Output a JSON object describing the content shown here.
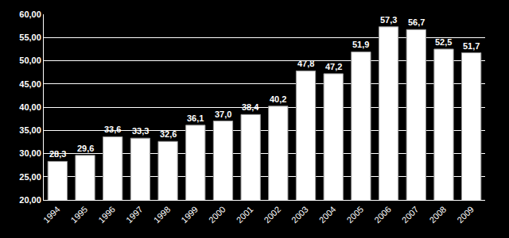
{
  "chart_data": {
    "type": "bar",
    "categories": [
      "1994",
      "1995",
      "1996",
      "1997",
      "1998",
      "1999",
      "2000",
      "2001",
      "2002",
      "2003",
      "2004",
      "2005",
      "2006",
      "2007",
      "2008",
      "2009"
    ],
    "values": [
      28.3,
      29.6,
      33.6,
      33.3,
      32.6,
      36.1,
      37.0,
      38.4,
      40.2,
      47.8,
      47.2,
      51.9,
      57.3,
      56.7,
      52.5,
      51.7
    ],
    "value_labels": [
      "28,3",
      "29,6",
      "33,6",
      "33,3",
      "32,6",
      "36,1",
      "37,0",
      "38,4",
      "40,2",
      "47,8",
      "47,2",
      "51,9",
      "57,3",
      "56,7",
      "52,5",
      "51,7"
    ],
    "color": "#ffffff",
    "data_labels": true,
    "grid": true,
    "ylim": [
      20,
      60
    ],
    "yticks": [
      {
        "value": 20,
        "label": "20,00"
      },
      {
        "value": 25,
        "label": "25,00"
      },
      {
        "value": 30,
        "label": "30,00"
      },
      {
        "value": 35,
        "label": "35,00"
      },
      {
        "value": 40,
        "label": "40,00"
      },
      {
        "value": 45,
        "label": "45,00"
      },
      {
        "value": 50,
        "label": "50,00"
      },
      {
        "value": 55,
        "label": "55,00"
      },
      {
        "value": 60,
        "label": "60,00"
      }
    ]
  }
}
